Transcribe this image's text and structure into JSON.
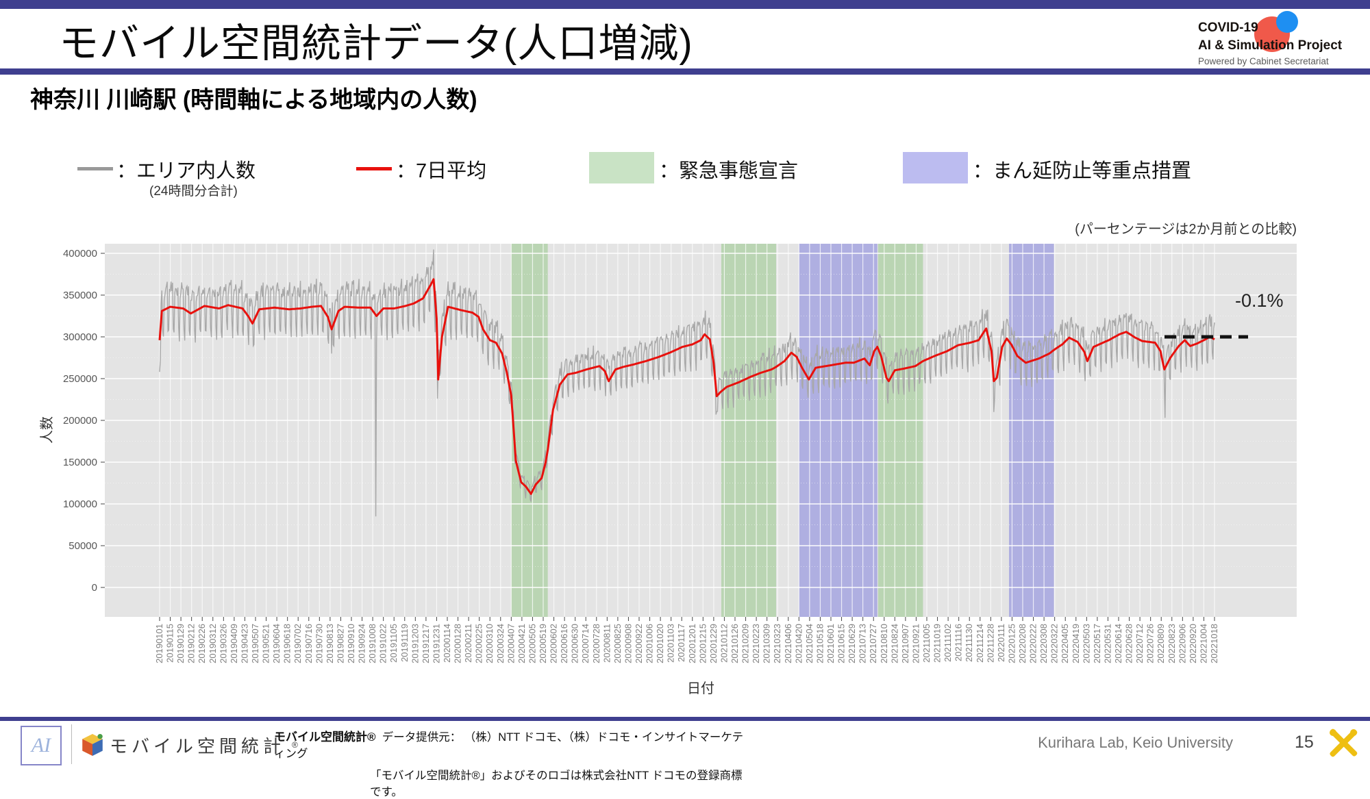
{
  "header": {
    "title": "モバイル空間統計データ(人口増減)",
    "logo": {
      "line1": "COVID-19",
      "line2": "AI & Simulation Project",
      "line3": "Powered by Cabinet Secretariat"
    }
  },
  "subtitle": "神奈川 川崎駅 (時間軸による地域内の人数)",
  "legend": {
    "area_label": "：エリア内人数",
    "area_sub": "(24時間分合計)",
    "avg_label": "：7日平均",
    "emergency_label": "：緊急事態宣言",
    "priority_label": "：まん延防止等重点措置",
    "area_color": "#999999",
    "avg_color": "#e8110d",
    "emergency_color": "#c9e3c5",
    "priority_color": "#bcbcf0"
  },
  "annotation_note": "(パーセンテージは2か月前との比較)",
  "chart_data": {
    "type": "line",
    "title": "神奈川 川崎駅 (時間軸による地域内の人数)",
    "xlabel": "日付",
    "ylabel": "人数",
    "ylim": [
      0,
      400000
    ],
    "grid": true,
    "panel_background": "#e4e4e4",
    "y_ticks": [
      400000,
      350000,
      300000,
      250000,
      200000,
      150000,
      100000,
      50000,
      0
    ],
    "x_ticks": [
      "20190101",
      "20190115",
      "20190129",
      "20190212",
      "20190226",
      "20190312",
      "20190326",
      "20190409",
      "20190423",
      "20190507",
      "20190521",
      "20190604",
      "20190618",
      "20190702",
      "20190716",
      "20190730",
      "20190813",
      "20190827",
      "20190910",
      "20190924",
      "20191008",
      "20191022",
      "20191105",
      "20191119",
      "20191203",
      "20191217",
      "20191231",
      "20200114",
      "20200128",
      "20200211",
      "20200225",
      "20200310",
      "20200324",
      "20200407",
      "20200421",
      "20200505",
      "20200519",
      "20200602",
      "20200616",
      "20200630",
      "20200714",
      "20200728",
      "20200811",
      "20200825",
      "20200908",
      "20200922",
      "20201006",
      "20201020",
      "20201103",
      "20201117",
      "20201201",
      "20201215",
      "20201229",
      "20210112",
      "20210126",
      "20210209",
      "20210223",
      "20210309",
      "20210323",
      "20210406",
      "20210420",
      "20210504",
      "20210518",
      "20210601",
      "20210615",
      "20210629",
      "20210713",
      "20210727",
      "20210810",
      "20210824",
      "20210907",
      "20210921",
      "20211005",
      "20211019",
      "20211102",
      "20211116",
      "20211130",
      "20211214",
      "20211228",
      "20220111",
      "20220125",
      "20220208",
      "20220222",
      "20220308",
      "20220322",
      "20220405",
      "20220419",
      "20220503",
      "20220517",
      "20220531",
      "20220614",
      "20220628",
      "20220712",
      "20220726",
      "20220809",
      "20220823",
      "20220906",
      "20220920",
      "20221004",
      "20221018"
    ],
    "bands": [
      {
        "label": "緊急事態宣言",
        "color": "#b3d2aa",
        "start": "20200407",
        "end": "20200525"
      },
      {
        "label": "緊急事態宣言",
        "color": "#b3d2aa",
        "start": "20210108",
        "end": "20210321"
      },
      {
        "label": "まん延防止等重点措置",
        "color": "#a6a6e0",
        "start": "20210420",
        "end": "20210801"
      },
      {
        "label": "緊急事態宣言",
        "color": "#b3d2aa",
        "start": "20210802",
        "end": "20210930"
      },
      {
        "label": "まん延防止等重点措置",
        "color": "#a6a6e0",
        "start": "20220121",
        "end": "20220321"
      }
    ],
    "series": [
      {
        "name": "7日平均",
        "color": "#e8110d",
        "keyframes": [
          [
            "20190101",
            296000
          ],
          [
            "20190104",
            331000
          ],
          [
            "20190115",
            336000
          ],
          [
            "20190201",
            334000
          ],
          [
            "20190211",
            328000
          ],
          [
            "20190301",
            337000
          ],
          [
            "20190320",
            334000
          ],
          [
            "20190401",
            338000
          ],
          [
            "20190420",
            334000
          ],
          [
            "20190428",
            324000
          ],
          [
            "20190503",
            316000
          ],
          [
            "20190512",
            333000
          ],
          [
            "20190601",
            335000
          ],
          [
            "20190620",
            333000
          ],
          [
            "20190705",
            334000
          ],
          [
            "20190720",
            336000
          ],
          [
            "20190801",
            337000
          ],
          [
            "20190810",
            324000
          ],
          [
            "20190815",
            309000
          ],
          [
            "20190824",
            331000
          ],
          [
            "20190901",
            336000
          ],
          [
            "20190920",
            335000
          ],
          [
            "20191005",
            335000
          ],
          [
            "20191013",
            325000
          ],
          [
            "20191022",
            334000
          ],
          [
            "20191105",
            334000
          ],
          [
            "20191120",
            337000
          ],
          [
            "20191201",
            340000
          ],
          [
            "20191213",
            346000
          ],
          [
            "20191223",
            362000
          ],
          [
            "20191227",
            369000
          ],
          [
            "20191231",
            322000
          ],
          [
            "20200102",
            249000
          ],
          [
            "20200107",
            300000
          ],
          [
            "20200115",
            336000
          ],
          [
            "20200201",
            332000
          ],
          [
            "20200216",
            329000
          ],
          [
            "20200224",
            324000
          ],
          [
            "20200301",
            309000
          ],
          [
            "20200310",
            296000
          ],
          [
            "20200318",
            293000
          ],
          [
            "20200326",
            280000
          ],
          [
            "20200401",
            258000
          ],
          [
            "20200407",
            230000
          ],
          [
            "20200413",
            152000
          ],
          [
            "20200420",
            126000
          ],
          [
            "20200426",
            121000
          ],
          [
            "20200503",
            112000
          ],
          [
            "20200509",
            123000
          ],
          [
            "20200517",
            131000
          ],
          [
            "20200522",
            149000
          ],
          [
            "20200525",
            165000
          ],
          [
            "20200601",
            213000
          ],
          [
            "20200610",
            243000
          ],
          [
            "20200620",
            255000
          ],
          [
            "20200701",
            257000
          ],
          [
            "20200715",
            261000
          ],
          [
            "20200801",
            265000
          ],
          [
            "20200808",
            259000
          ],
          [
            "20200813",
            247000
          ],
          [
            "20200822",
            261000
          ],
          [
            "20200901",
            264000
          ],
          [
            "20200915",
            267000
          ],
          [
            "20201001",
            271000
          ],
          [
            "20201018",
            276000
          ],
          [
            "20201101",
            281000
          ],
          [
            "20201118",
            288000
          ],
          [
            "20201201",
            291000
          ],
          [
            "20201212",
            296000
          ],
          [
            "20201217",
            303000
          ],
          [
            "20201224",
            297000
          ],
          [
            "20201229",
            268000
          ],
          [
            "20210102",
            229000
          ],
          [
            "20210107",
            234000
          ],
          [
            "20210115",
            240000
          ],
          [
            "20210201",
            246000
          ],
          [
            "20210215",
            252000
          ],
          [
            "20210301",
            257000
          ],
          [
            "20210315",
            261000
          ],
          [
            "20210321",
            264000
          ],
          [
            "20210401",
            271000
          ],
          [
            "20210410",
            281000
          ],
          [
            "20210417",
            276000
          ],
          [
            "20210424",
            263000
          ],
          [
            "20210503",
            249000
          ],
          [
            "20210512",
            263000
          ],
          [
            "20210601",
            266000
          ],
          [
            "20210620",
            269000
          ],
          [
            "20210701",
            269000
          ],
          [
            "20210715",
            274000
          ],
          [
            "20210722",
            266000
          ],
          [
            "20210728",
            283000
          ],
          [
            "20210801",
            288000
          ],
          [
            "20210806",
            277000
          ],
          [
            "20210813",
            251000
          ],
          [
            "20210816",
            247000
          ],
          [
            "20210824",
            260000
          ],
          [
            "20210905",
            262000
          ],
          [
            "20210920",
            265000
          ],
          [
            "20210930",
            271000
          ],
          [
            "20211015",
            277000
          ],
          [
            "20211101",
            283000
          ],
          [
            "20211115",
            290000
          ],
          [
            "20211201",
            293000
          ],
          [
            "20211212",
            296000
          ],
          [
            "20211222",
            310000
          ],
          [
            "20211229",
            283000
          ],
          [
            "20220101",
            247000
          ],
          [
            "20220105",
            251000
          ],
          [
            "20220112",
            288000
          ],
          [
            "20220118",
            298000
          ],
          [
            "20220124",
            291000
          ],
          [
            "20220201",
            277000
          ],
          [
            "20220212",
            269000
          ],
          [
            "20220301",
            274000
          ],
          [
            "20220315",
            280000
          ],
          [
            "20220322",
            285000
          ],
          [
            "20220401",
            291000
          ],
          [
            "20220410",
            299000
          ],
          [
            "20220421",
            294000
          ],
          [
            "20220430",
            282000
          ],
          [
            "20220504",
            271000
          ],
          [
            "20220512",
            288000
          ],
          [
            "20220601",
            296000
          ],
          [
            "20220615",
            303000
          ],
          [
            "20220624",
            306000
          ],
          [
            "20220706",
            299000
          ],
          [
            "20220715",
            295000
          ],
          [
            "20220801",
            293000
          ],
          [
            "20220808",
            283000
          ],
          [
            "20220813",
            261000
          ],
          [
            "20220821",
            275000
          ],
          [
            "20220901",
            289000
          ],
          [
            "20220909",
            296000
          ],
          [
            "20220916",
            289000
          ],
          [
            "20220925",
            292000
          ],
          [
            "20221004",
            296000
          ],
          [
            "20221012",
            300000
          ],
          [
            "20221018",
            297000
          ]
        ]
      },
      {
        "name": "エリア内人数(24時間分合計)",
        "color": "#a8a8a8",
        "derived_from": "7日平均",
        "daily_pattern": {
          "weekday_multipliers_sun_to_sat": [
            0.9,
            1.05,
            1.06,
            1.07,
            1.06,
            1.08,
            0.93
          ],
          "noise_amplitude": 0.022,
          "special_days": {
            "20190101": 258000,
            "20190102": 272000,
            "20190815": 280000,
            "20191012": 85000,
            "20200101": 226000,
            "20210101": 207000,
            "20220101": 210000,
            "20220814": 203000
          }
        }
      }
    ],
    "end_annotation": {
      "label": "-0.1%",
      "value": 300000,
      "date_range": [
        "20220920",
        "20221028"
      ]
    }
  },
  "footer": {
    "ai_logo_text": "AI",
    "logo_wordmark": "モバイル空間統計",
    "logo_reg_mark": "®",
    "brand_bold": "モバイル空間統計®",
    "provider_text": "データ提供元： （株）NTT ドコモ、（株）ドコモ・インサイトマーケティング",
    "trademark_text": "「モバイル空間統計®」およびそのロゴは株式会社NTT ドコモの登録商標です。",
    "lab_text": "Kurihara Lab, Keio University",
    "page_number": "15"
  }
}
